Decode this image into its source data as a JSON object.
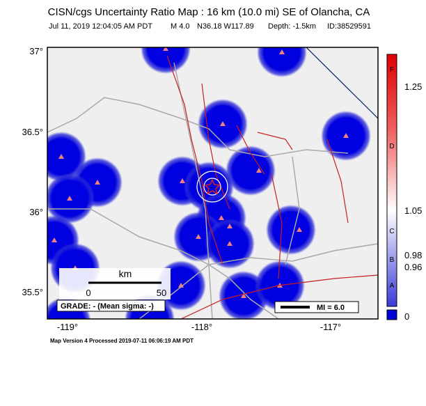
{
  "header": {
    "title": "CISN/cgs Uncertainty Ratio Map : 16 km (10.0 mi) SE of Olancha, CA",
    "subtitle": [
      "Jul 11, 2019 12:04:05 AM PDT",
      "M 4.0",
      "N36.18 W117.89",
      "Depth: -1.5km",
      "ID:38529591"
    ]
  },
  "map": {
    "lon_labels": [
      "-119°",
      "-118°",
      "-117°"
    ],
    "lat_labels": [
      "37°",
      "36.5°",
      "36°",
      "35.5°"
    ],
    "scale": {
      "unit": "km",
      "labels": [
        "0",
        "50"
      ]
    },
    "grade": "GRADE: - (Mean sigma: -)",
    "legend": "MI = 6.0"
  },
  "colorbar": {
    "letters": [
      "F",
      "D",
      "C",
      "B",
      "A"
    ],
    "values": [
      "1.25",
      "1.05",
      "0.98",
      "0.96",
      "0"
    ]
  },
  "footer": "Map Version 4 Processed 2019-07-11 06:06:19 AM PDT"
}
